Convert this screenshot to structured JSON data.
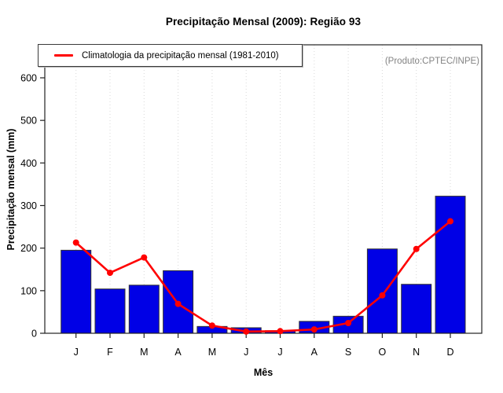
{
  "chart_data": {
    "type": "bar",
    "title": "Precipitação Mensal (2009): Região 93",
    "xlabel": "Mês",
    "ylabel": "Precipitação mensal (mm)",
    "annotation": "(Produto:CPTEC/INPE)",
    "categories": [
      "J",
      "F",
      "M",
      "A",
      "M",
      "J",
      "J",
      "A",
      "S",
      "O",
      "N",
      "D"
    ],
    "series": [
      {
        "name": "Precipitação mensal (2009)",
        "type": "bar",
        "color": "#0000e6",
        "values": [
          195,
          104,
          113,
          147,
          16,
          13,
          6,
          28,
          40,
          198,
          115,
          322
        ]
      },
      {
        "name": "Climatologia da precipitação mensal (1981-2010)",
        "type": "line",
        "color": "#ff0000",
        "values": [
          213,
          142,
          178,
          69,
          18,
          4,
          5,
          9,
          24,
          89,
          198,
          263
        ]
      }
    ],
    "yticks": [
      0,
      100,
      200,
      300,
      400,
      500,
      600
    ],
    "ylim": [
      0,
      675
    ],
    "grid": "vertical dotted line at each month",
    "legend": {
      "label": "Climatologia da precipitação mensal (1981-2010)",
      "position": "top-left"
    },
    "colors": {
      "bar_fill": "#0000e6",
      "bar_border": "#333333",
      "line": "#ff0000",
      "grid": "#d8d8d8",
      "axis": "#222222",
      "annotation_text": "#838383"
    }
  }
}
